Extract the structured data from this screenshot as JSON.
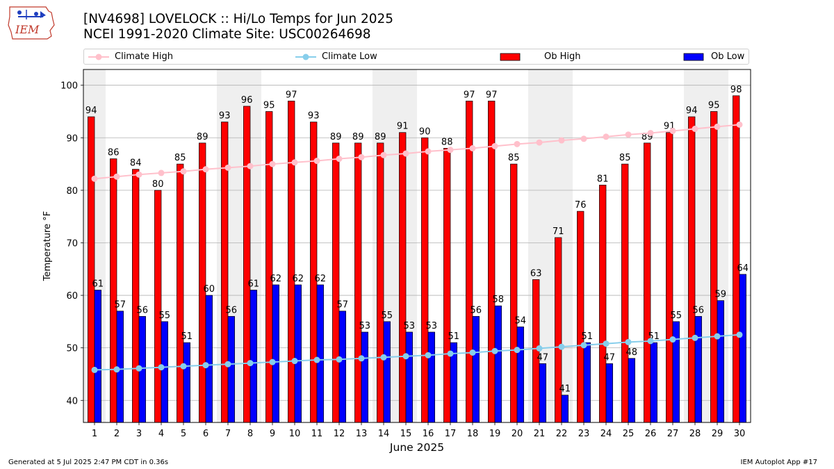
{
  "header": {
    "title_line1": "[NV4698] LOVELOCK :: Hi/Lo Temps for Jun 2025",
    "title_line2": "NCEI 1991-2020 Climate Site: USC00264698",
    "logo_text": "IEM"
  },
  "legend": {
    "climate_high": "Climate High",
    "climate_low": "Climate Low",
    "ob_high": "Ob High",
    "ob_low": "Ob Low"
  },
  "footer": {
    "generated": "Generated at 5 Jul 2025 2:47 PM CDT in 0.36s",
    "app": "IEM Autoplot App #17"
  },
  "colors": {
    "ob_high": "#ff0000",
    "ob_low": "#0000ff",
    "climate_high": "#ffc0cb",
    "climate_low": "#87ceeb",
    "weekend_shade": "#efefef",
    "grid": "#b0b0b0"
  },
  "chart_data": {
    "type": "bar",
    "title": "[NV4698] LOVELOCK :: Hi/Lo Temps for Jun 2025",
    "subtitle": "NCEI 1991-2020 Climate Site: USC00264698",
    "xlabel": "June 2025",
    "ylabel": "Temperature °F",
    "ylim": [
      35.8,
      103
    ],
    "yticks": [
      40,
      50,
      60,
      70,
      80,
      90,
      100
    ],
    "grid": true,
    "legend_position": "top",
    "categories": [
      "1",
      "2",
      "3",
      "4",
      "5",
      "6",
      "7",
      "8",
      "9",
      "10",
      "11",
      "12",
      "13",
      "14",
      "15",
      "16",
      "17",
      "18",
      "19",
      "20",
      "21",
      "22",
      "23",
      "24",
      "25",
      "26",
      "27",
      "28",
      "29",
      "30"
    ],
    "shaded_days": [
      "1",
      "7",
      "8",
      "14",
      "15",
      "21",
      "22",
      "28",
      "29"
    ],
    "series": [
      {
        "name": "Ob High",
        "kind": "bar",
        "values": [
          94,
          86,
          84,
          80,
          85,
          89,
          93,
          96,
          95,
          97,
          93,
          89,
          89,
          89,
          91,
          90,
          88,
          97,
          97,
          85,
          63,
          71,
          76,
          81,
          85,
          89,
          91,
          94,
          95,
          98
        ]
      },
      {
        "name": "Ob Low",
        "kind": "bar",
        "values": [
          61,
          57,
          56,
          55,
          51,
          60,
          56,
          61,
          62,
          62,
          62,
          57,
          53,
          55,
          53,
          53,
          51,
          56,
          58,
          54,
          47,
          41,
          51,
          47,
          48,
          51,
          55,
          56,
          59,
          64
        ]
      },
      {
        "name": "Climate High",
        "kind": "line",
        "values": [
          82.2,
          82.6,
          83.0,
          83.3,
          83.6,
          84.0,
          84.3,
          84.6,
          85.0,
          85.3,
          85.6,
          86.0,
          86.3,
          86.7,
          87.0,
          87.4,
          87.7,
          88.0,
          88.4,
          88.8,
          89.1,
          89.5,
          89.8,
          90.2,
          90.6,
          90.9,
          91.3,
          91.7,
          92.1,
          92.5
        ]
      },
      {
        "name": "Climate Low",
        "kind": "line",
        "values": [
          45.8,
          45.9,
          46.1,
          46.3,
          46.5,
          46.7,
          46.9,
          47.1,
          47.3,
          47.5,
          47.7,
          47.8,
          48.0,
          48.2,
          48.4,
          48.6,
          48.9,
          49.1,
          49.4,
          49.6,
          49.9,
          50.2,
          50.5,
          50.8,
          51.1,
          51.3,
          51.6,
          51.9,
          52.2,
          52.5
        ]
      }
    ]
  }
}
